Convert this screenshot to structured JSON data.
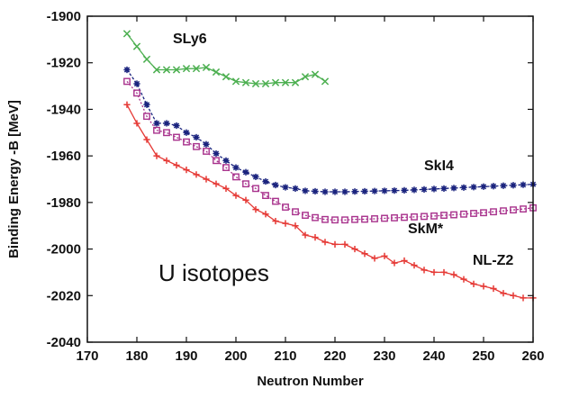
{
  "chart_data": {
    "type": "line",
    "title": "",
    "annotation": "U isotopes",
    "xlabel": "Neutron Number",
    "ylabel": "Binding Energy -B [MeV]",
    "xlim": [
      170,
      260
    ],
    "ylim": [
      -2040,
      -1900
    ],
    "xticks": [
      170,
      180,
      190,
      200,
      210,
      220,
      230,
      240,
      250,
      260
    ],
    "yticks": [
      -1900,
      -1920,
      -1940,
      -1960,
      -1980,
      -2000,
      -2020,
      -2040
    ],
    "series": [
      {
        "name": "SLy6",
        "color": "#4caf50",
        "marker": "x",
        "x": [
          178,
          180,
          182,
          184,
          186,
          188,
          190,
          192,
          194,
          196,
          198,
          200,
          202,
          204,
          206,
          208,
          210,
          212,
          214,
          216,
          218
        ],
        "y": [
          -1907.5,
          -1913,
          -1918.5,
          -1923,
          -1923,
          -1923,
          -1922.5,
          -1922.5,
          -1922,
          -1924,
          -1926,
          -1928,
          -1928.5,
          -1929,
          -1929,
          -1928.5,
          -1928.5,
          -1928.5,
          -1926,
          -1925,
          -1928
        ]
      },
      {
        "name": "SkI4",
        "color": "#1a237e",
        "marker": "star",
        "x": [
          178,
          180,
          182,
          184,
          186,
          188,
          190,
          192,
          194,
          196,
          198,
          200,
          202,
          204,
          206,
          208,
          210,
          212,
          214,
          216,
          218,
          220,
          222,
          224,
          226,
          228,
          230,
          232,
          234,
          236,
          238,
          240,
          242,
          244,
          246,
          248,
          250,
          252,
          254,
          256,
          258,
          260
        ],
        "y": [
          -1923,
          -1929,
          -1938,
          -1946,
          -1946,
          -1947,
          -1950,
          -1952,
          -1955,
          -1959,
          -1962,
          -1965,
          -1967,
          -1969,
          -1971,
          -1972.5,
          -1973.5,
          -1974,
          -1975,
          -1975.2,
          -1975.4,
          -1975.4,
          -1975.4,
          -1975.3,
          -1975.2,
          -1975.1,
          -1975,
          -1974.9,
          -1974.8,
          -1974.6,
          -1974.4,
          -1974.2,
          -1974,
          -1973.8,
          -1973.6,
          -1973.4,
          -1973.2,
          -1973,
          -1972.8,
          -1972.6,
          -1972.4,
          -1972.2
        ]
      },
      {
        "name": "SkM*",
        "color": "#a8328c",
        "marker": "square",
        "x": [
          178,
          180,
          182,
          184,
          186,
          188,
          190,
          192,
          194,
          196,
          198,
          200,
          202,
          204,
          206,
          208,
          210,
          212,
          214,
          216,
          218,
          220,
          222,
          224,
          226,
          228,
          230,
          232,
          234,
          236,
          238,
          240,
          242,
          244,
          246,
          248,
          250,
          252,
          254,
          256,
          258,
          260
        ],
        "y": [
          -1928,
          -1933,
          -1943,
          -1949,
          -1950,
          -1952,
          -1954,
          -1956,
          -1958,
          -1962,
          -1965,
          -1969,
          -1972,
          -1974,
          -1977,
          -1979.5,
          -1982,
          -1984,
          -1985.5,
          -1986.5,
          -1987.3,
          -1987.5,
          -1987.5,
          -1987.3,
          -1987.2,
          -1987,
          -1986.8,
          -1986.6,
          -1986.4,
          -1986.2,
          -1986,
          -1985.8,
          -1985.5,
          -1985.3,
          -1985,
          -1984.7,
          -1984.4,
          -1984,
          -1983.6,
          -1983.2,
          -1982.8,
          -1982.3
        ]
      },
      {
        "name": "NL-Z2",
        "color": "#e53935",
        "marker": "plus",
        "x": [
          178,
          180,
          182,
          184,
          186,
          188,
          190,
          192,
          194,
          196,
          198,
          200,
          202,
          204,
          206,
          208,
          210,
          212,
          214,
          216,
          218,
          220,
          222,
          224,
          226,
          228,
          230,
          232,
          234,
          236,
          238,
          240,
          242,
          244,
          246,
          248,
          250,
          252,
          254,
          256,
          258,
          260
        ],
        "y": [
          -1938,
          -1946,
          -1953,
          -1960,
          -1962,
          -1964,
          -1966,
          -1968,
          -1970,
          -1972,
          -1974,
          -1977,
          -1979,
          -1983,
          -1985,
          -1988,
          -1989,
          -1990,
          -1994,
          -1995,
          -1997,
          -1998,
          -1998,
          -2000,
          -2002,
          -2004,
          -2003,
          -2006,
          -2005,
          -2007,
          -2009,
          -2010,
          -2010,
          -2011,
          -2013,
          -2015,
          -2016,
          -2017,
          -2019,
          -2020,
          -2021,
          -2021
        ]
      }
    ]
  }
}
